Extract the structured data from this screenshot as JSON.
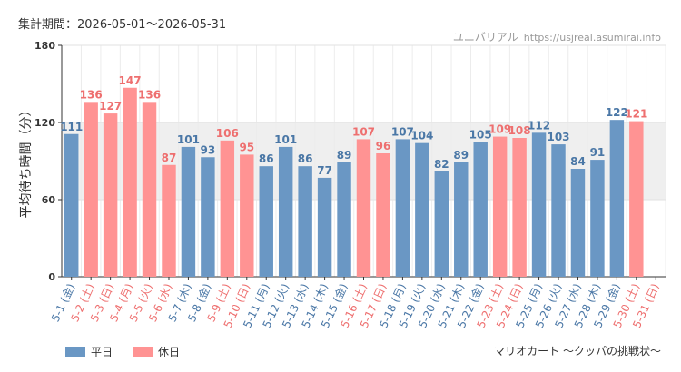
{
  "header": {
    "period": "集計期間：2026-05-01〜2026-05-31",
    "brand": "ユニバリアル",
    "url": "https://usjreal.asumirai.info"
  },
  "footer": {
    "source": "マリオカート 〜クッパの挑戦状〜"
  },
  "colors": {
    "weekday": "#6a97c4",
    "holiday": "#ff9393",
    "weekday_text": "#4a77a6",
    "holiday_text": "#ee6f6f",
    "band": "#efefef"
  },
  "chart_data": {
    "type": "bar",
    "title": "",
    "ylabel": "平均待ち時間（分）",
    "xlabel": "",
    "ylim": [
      0,
      180
    ],
    "yticks": [
      0,
      60,
      120,
      180
    ],
    "highlight_band": [
      60,
      120
    ],
    "grid": true,
    "legend_position": "bottom-left",
    "categories": [
      "5-1 (金)",
      "5-2 (土)",
      "5-3 (日)",
      "5-4 (月)",
      "5-5 (火)",
      "5-6 (水)",
      "5-7 (木)",
      "5-8 (金)",
      "5-9 (土)",
      "5-10 (日)",
      "5-11 (月)",
      "5-12 (火)",
      "5-13 (水)",
      "5-14 (木)",
      "5-15 (金)",
      "5-16 (土)",
      "5-17 (日)",
      "5-18 (月)",
      "5-19 (火)",
      "5-20 (水)",
      "5-21 (木)",
      "5-22 (金)",
      "5-23 (土)",
      "5-24 (日)",
      "5-25 (月)",
      "5-26 (火)",
      "5-27 (水)",
      "5-28 (木)",
      "5-29 (金)",
      "5-30 (土)",
      "5-31 (日)"
    ],
    "values": [
      111,
      136,
      127,
      147,
      136,
      87,
      101,
      93,
      106,
      95,
      86,
      101,
      86,
      77,
      89,
      107,
      96,
      107,
      104,
      82,
      89,
      105,
      109,
      108,
      112,
      103,
      84,
      91,
      122,
      121,
      null
    ],
    "day_type": [
      "weekday",
      "holiday",
      "holiday",
      "holiday",
      "holiday",
      "holiday",
      "weekday",
      "weekday",
      "holiday",
      "holiday",
      "weekday",
      "weekday",
      "weekday",
      "weekday",
      "weekday",
      "holiday",
      "holiday",
      "weekday",
      "weekday",
      "weekday",
      "weekday",
      "weekday",
      "holiday",
      "holiday",
      "weekday",
      "weekday",
      "weekday",
      "weekday",
      "weekday",
      "holiday",
      "holiday"
    ],
    "series": [
      {
        "name": "平日",
        "type_key": "weekday"
      },
      {
        "name": "休日",
        "type_key": "holiday"
      }
    ]
  }
}
